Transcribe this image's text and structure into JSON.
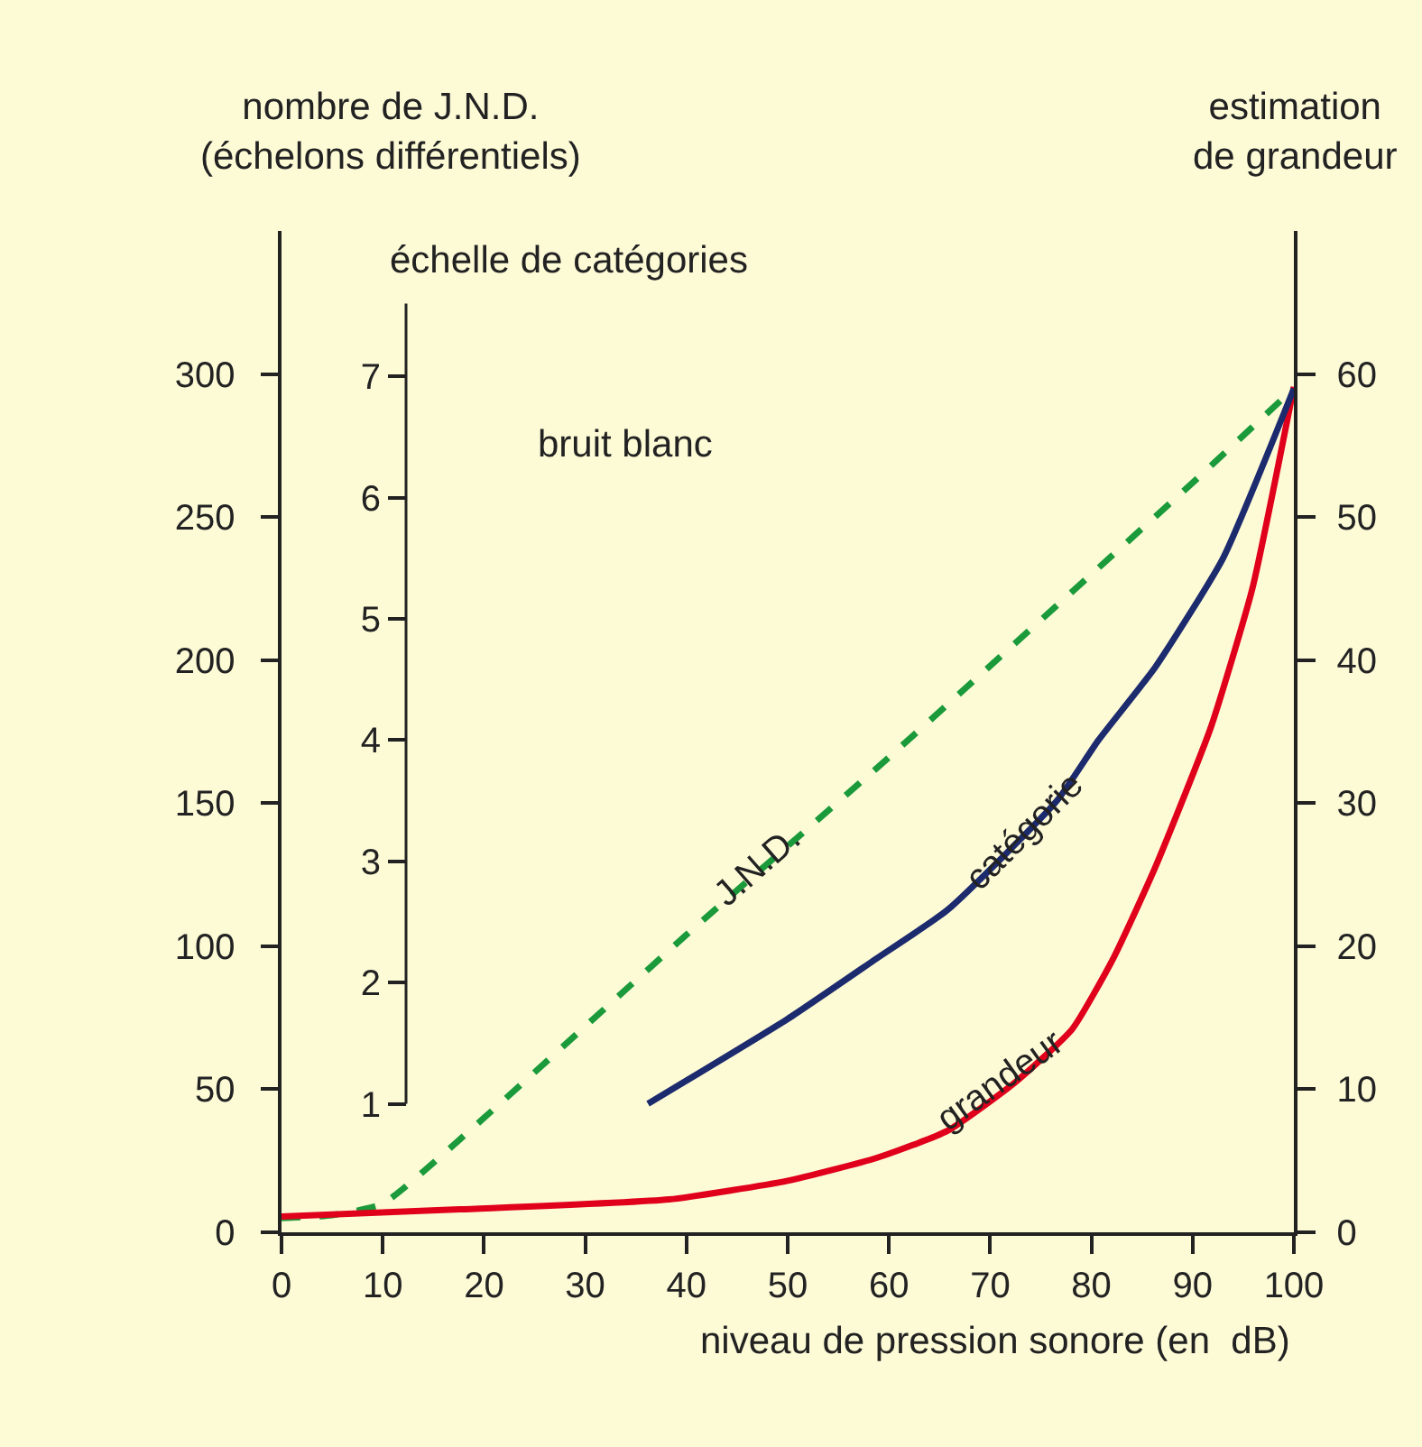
{
  "chart_data": {
    "type": "line",
    "annotations": [
      "bruit blanc"
    ],
    "xlabel": "niveau de pression sonore (en  dB)",
    "ylabel": "nombre de J.N.D.\n(échelons différentiels)",
    "y2label": "estimation\nde grandeur",
    "y3label": "échelle de catégories",
    "xlim": [
      0,
      100
    ],
    "xticks": [
      0,
      10,
      20,
      30,
      40,
      50,
      60,
      70,
      80,
      90,
      100
    ],
    "ylim": [
      0,
      350
    ],
    "yticks": [
      0,
      50,
      100,
      150,
      200,
      250,
      300
    ],
    "y2lim": [
      0,
      70
    ],
    "y2ticks": [
      0,
      10,
      20,
      30,
      40,
      50,
      60
    ],
    "y3lim": [
      -0.06,
      8.2
    ],
    "y3ticks": [
      1,
      2,
      3,
      4,
      5,
      6,
      7
    ],
    "grid": false,
    "legend": false,
    "series": [
      {
        "name": "J.N.D.",
        "color": "#1a9a3a",
        "line_style": "dashed",
        "x": [
          0,
          5,
          10,
          20,
          30,
          40,
          50,
          60,
          70,
          80,
          90,
          100
        ],
        "values": [
          5,
          6,
          10,
          40,
          72,
          104,
          135,
          166,
          198,
          230,
          262,
          295
        ]
      },
      {
        "name": "catégorie",
        "color": "#1c2a6e",
        "line_style": "solid",
        "axis": "y3",
        "x": [
          36.2,
          50,
          58.8,
          65.8,
          76.6,
          80.7,
          86.3,
          93,
          100
        ],
        "values": [
          1.0,
          1.7,
          2.2,
          2.6,
          3.5,
          4.0,
          4.6,
          5.5,
          6.9
        ]
      },
      {
        "name": "grandeur",
        "color": "#e0001b",
        "line_style": "solid",
        "axis": "y2",
        "x": [
          0,
          17.6,
          38.3,
          50,
          58.8,
          65.8,
          72.5,
          78.1,
          82.2,
          86.3,
          91.8,
          95.9,
          100
        ],
        "values": [
          1.1,
          1.6,
          2.3,
          3.6,
          5.2,
          7.1,
          10.5,
          14.2,
          19.2,
          25.5,
          35.3,
          45,
          59.1
        ]
      }
    ]
  }
}
